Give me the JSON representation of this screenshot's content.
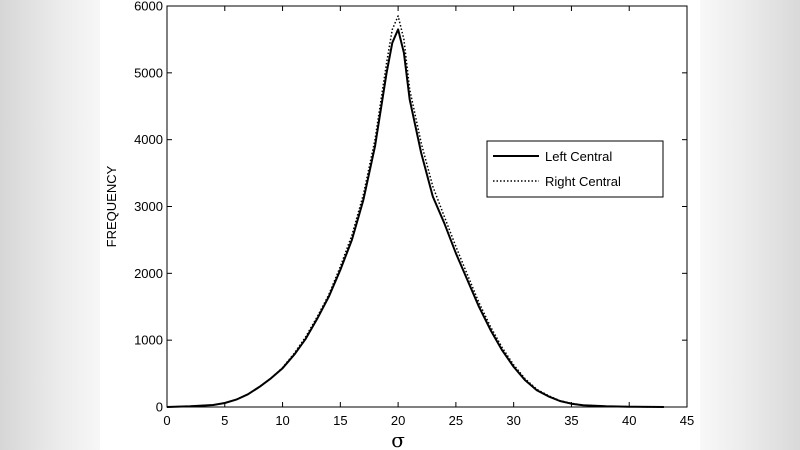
{
  "chart_data": {
    "type": "line",
    "title": "",
    "xlabel": "σ",
    "ylabel": "FREQUENCY",
    "xlim": [
      0,
      45
    ],
    "ylim": [
      0,
      6000
    ],
    "xticks": [
      "0",
      "5",
      "10",
      "15",
      "20",
      "25",
      "30",
      "35",
      "40",
      "45"
    ],
    "yticks": [
      "0",
      "1000",
      "2000",
      "3000",
      "4000",
      "5000",
      "6000"
    ],
    "grid": false,
    "legend_position": "right",
    "series": [
      {
        "name": "Left Central",
        "style": "solid",
        "x": [
          0,
          2,
          4,
          5,
          6,
          7,
          8,
          9,
          10,
          11,
          12,
          13,
          14,
          15,
          16,
          17,
          18,
          19,
          19.5,
          20,
          20.5,
          21,
          22,
          23,
          24,
          25,
          26,
          27,
          28,
          29,
          30,
          31,
          32,
          33,
          34,
          35,
          36,
          38,
          40,
          43
        ],
        "y": [
          0,
          10,
          30,
          60,
          110,
          190,
          300,
          430,
          580,
          780,
          1020,
          1320,
          1650,
          2050,
          2500,
          3100,
          3900,
          5000,
          5450,
          5650,
          5300,
          4600,
          3800,
          3150,
          2750,
          2300,
          1900,
          1500,
          1150,
          850,
          600,
          400,
          250,
          160,
          90,
          50,
          25,
          10,
          4,
          0
        ]
      },
      {
        "name": "Right Central",
        "style": "dotted",
        "x": [
          0,
          2,
          4,
          5,
          6,
          7,
          8,
          9,
          10,
          11,
          12,
          13,
          14,
          15,
          16,
          17,
          18,
          19,
          19.5,
          20,
          20.5,
          21,
          22,
          23,
          24,
          25,
          26,
          27,
          28,
          29,
          30,
          31,
          32,
          33,
          34,
          35,
          36,
          38,
          40,
          43
        ],
        "y": [
          0,
          10,
          30,
          60,
          110,
          190,
          300,
          430,
          590,
          800,
          1050,
          1350,
          1680,
          2100,
          2570,
          3180,
          4000,
          5150,
          5650,
          5850,
          5500,
          4750,
          3950,
          3300,
          2850,
          2400,
          1980,
          1560,
          1200,
          890,
          630,
          420,
          265,
          170,
          95,
          55,
          28,
          11,
          5,
          0
        ]
      }
    ]
  }
}
